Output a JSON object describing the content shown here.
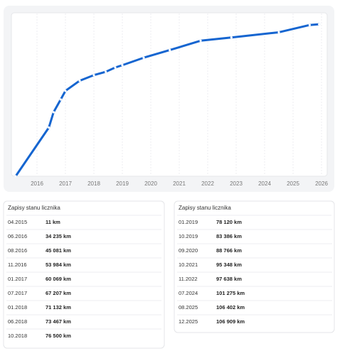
{
  "chart_data": {
    "type": "line",
    "x": [
      "04.2015",
      "06.2016",
      "08.2016",
      "11.2016",
      "01.2017",
      "07.2017",
      "01.2018",
      "06.2018",
      "10.2018",
      "01.2019",
      "10.2019",
      "09.2020",
      "10.2021",
      "11.2022",
      "07.2024",
      "08.2025",
      "12.2025"
    ],
    "values": [
      11,
      34235,
      45081,
      53984,
      60069,
      67207,
      71132,
      73467,
      76500,
      78120,
      83386,
      88766,
      95348,
      97638,
      101275,
      106402,
      106909
    ],
    "value_labels": [
      "11 km",
      "34 235 km",
      "45 081 km",
      "53 984 km",
      "60 069 km",
      "67 207 km",
      "71 132 km",
      "73 467 km",
      "76 500 km",
      "78 120 km",
      "83 386 km",
      "88 766 km",
      "95 348 km",
      "97 638 km",
      "101 275 km",
      "106 402 km",
      "106 909 km"
    ],
    "color": "#1565d0",
    "xlim": [
      2015.1,
      2026.2
    ],
    "xticks": [
      2016,
      2017,
      2018,
      2019,
      2020,
      2021,
      2022,
      2023,
      2024,
      2025,
      2026
    ],
    "ylim": [
      0,
      115000
    ],
    "grid": true
  },
  "tables": [
    {
      "title": "Zapisy stanu licznika"
    },
    {
      "title": "Zapisy stanu licznika"
    }
  ]
}
